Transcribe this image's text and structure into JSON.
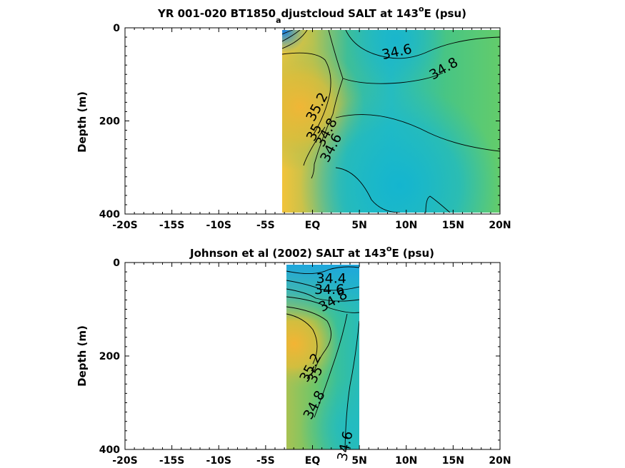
{
  "chart_data": [
    {
      "type": "heatmap",
      "title_parts": [
        "YR 001-020 BT1850",
        "a",
        "djustcloud SALT at 143",
        "o",
        "E (psu)"
      ],
      "ylabel": "Depth (m)",
      "xlim": [
        -20,
        20
      ],
      "ylim": [
        0,
        400
      ],
      "y_reversed": true,
      "x_ticks": [
        -20,
        -15,
        -10,
        -5,
        0,
        5,
        10,
        15,
        20
      ],
      "x_tick_labels": [
        "-20S",
        "-15S",
        "-10S",
        "-5S",
        "EQ",
        "5N",
        "10N",
        "15N",
        "20N"
      ],
      "y_ticks": [
        0,
        200,
        400
      ],
      "y_tick_labels": [
        "0",
        "200",
        "400"
      ],
      "data_extent_lat": [
        -3.5,
        20
      ],
      "data_extent_depth": [
        5,
        395
      ],
      "grid": false,
      "colormap": "parula",
      "color_range": [
        34.2,
        35.4
      ],
      "salinity_field": {
        "lat": [
          -3.5,
          0,
          3,
          6,
          9,
          12,
          15,
          18,
          20
        ],
        "depth": [
          5,
          50,
          100,
          150,
          200,
          250,
          300,
          350,
          395
        ],
        "values": [
          [
            34.3,
            34.7,
            34.7,
            34.6,
            34.55,
            34.55,
            34.6,
            34.65,
            34.65
          ],
          [
            35.1,
            35.0,
            34.8,
            34.62,
            34.55,
            34.6,
            34.7,
            34.75,
            34.75
          ],
          [
            35.25,
            35.15,
            34.9,
            34.75,
            34.72,
            34.78,
            34.82,
            34.85,
            34.85
          ],
          [
            35.3,
            35.2,
            34.85,
            34.8,
            34.82,
            34.86,
            34.88,
            34.88,
            34.88
          ],
          [
            35.2,
            34.95,
            34.7,
            34.68,
            34.66,
            34.75,
            34.83,
            34.86,
            34.86
          ],
          [
            35.0,
            34.75,
            34.58,
            34.55,
            34.55,
            34.6,
            34.7,
            34.75,
            34.78
          ],
          [
            34.9,
            34.7,
            34.55,
            34.52,
            34.5,
            34.55,
            34.6,
            34.65,
            34.7
          ],
          [
            34.85,
            34.68,
            34.58,
            34.55,
            34.5,
            34.5,
            34.55,
            34.6,
            34.62
          ],
          [
            34.82,
            34.66,
            34.6,
            34.56,
            34.55,
            34.58,
            34.55,
            34.55,
            34.56
          ]
        ]
      },
      "contour_labels": [
        {
          "text": "34.6",
          "lat": 9.0,
          "depth": 52,
          "angle": -12
        },
        {
          "text": "34.8",
          "lat": 14.0,
          "depth": 88,
          "angle": -30
        },
        {
          "text": "35.2",
          "lat": 0.5,
          "depth": 170,
          "angle": -62
        },
        {
          "text": "35",
          "lat": 0.2,
          "depth": 225,
          "angle": -62
        },
        {
          "text": "34.8",
          "lat": 1.5,
          "depth": 225,
          "angle": -62
        },
        {
          "text": "34.6",
          "lat": 2.0,
          "depth": 258,
          "angle": -62
        }
      ]
    },
    {
      "type": "heatmap",
      "title_parts": [
        "Johnson et al (2002) SALT at 143",
        "o",
        "E (psu)"
      ],
      "ylabel": "Depth (m)",
      "xlim": [
        -20,
        20
      ],
      "ylim": [
        0,
        400
      ],
      "y_reversed": true,
      "x_ticks": [
        -20,
        -15,
        -10,
        -5,
        0,
        5,
        10,
        15,
        20
      ],
      "x_tick_labels": [
        "-20S",
        "-15S",
        "-10S",
        "-5S",
        "EQ",
        "5N",
        "10N",
        "15N",
        "20N"
      ],
      "y_ticks": [
        0,
        200,
        400
      ],
      "y_tick_labels": [
        "0",
        "200",
        "400"
      ],
      "data_extent_lat": [
        -3,
        5
      ],
      "data_extent_depth": [
        5,
        400
      ],
      "grid": false,
      "colormap": "parula",
      "color_range": [
        34.2,
        35.4
      ],
      "salinity_field": {
        "lat": [
          -3,
          -1,
          1,
          3,
          5
        ],
        "depth": [
          5,
          50,
          100,
          150,
          200,
          250,
          300,
          350,
          400
        ],
        "values": [
          [
            34.3,
            34.28,
            34.3,
            34.32,
            34.35
          ],
          [
            34.7,
            34.5,
            34.45,
            34.5,
            34.55
          ],
          [
            35.05,
            34.95,
            34.8,
            34.7,
            34.65
          ],
          [
            35.3,
            35.2,
            34.9,
            34.75,
            34.65
          ],
          [
            35.35,
            35.15,
            34.85,
            34.7,
            34.62
          ],
          [
            35.1,
            34.9,
            34.72,
            34.62,
            34.6
          ],
          [
            34.9,
            34.78,
            34.68,
            34.6,
            34.58
          ],
          [
            34.85,
            34.75,
            34.66,
            34.6,
            34.58
          ],
          [
            34.82,
            34.74,
            34.66,
            34.6,
            34.58
          ]
        ]
      },
      "contour_labels": [
        {
          "text": "34.4",
          "lat": 2.0,
          "depth": 34,
          "angle": 0
        },
        {
          "text": "34.6",
          "lat": 1.8,
          "depth": 58,
          "angle": 0
        },
        {
          "text": "34.8",
          "lat": 2.2,
          "depth": 82,
          "angle": -30
        },
        {
          "text": "35.2",
          "lat": -0.2,
          "depth": 225,
          "angle": -62
        },
        {
          "text": "35",
          "lat": 0.3,
          "depth": 240,
          "angle": -62
        },
        {
          "text": "34.8",
          "lat": 0.2,
          "depth": 305,
          "angle": -62
        },
        {
          "text": "34.6",
          "lat": 3.5,
          "depth": 393,
          "angle": -78
        }
      ]
    }
  ]
}
